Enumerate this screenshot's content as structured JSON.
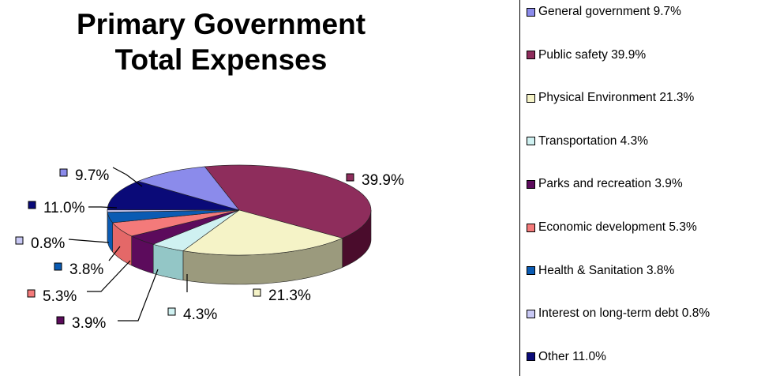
{
  "chart_data": {
    "type": "pie",
    "title": "Primary Government Total Expenses",
    "title_lines": [
      "Primary Government",
      "Total Expenses"
    ],
    "legend_position": "right",
    "slices": [
      {
        "name": "General government",
        "value": 9.7,
        "label": "9.7%",
        "legend": "General government 9.7%",
        "color": "#8B8BEB",
        "side": "#5C5CA8"
      },
      {
        "name": "Public safety",
        "value": 39.9,
        "label": "39.9%",
        "legend": "Public safety 39.9%",
        "color": "#8E2D5C",
        "side": "#4A0C2C"
      },
      {
        "name": "Physical Environment",
        "value": 21.3,
        "label": "21.3%",
        "legend": "Physical Environment 21.3%",
        "color": "#F5F3C7",
        "side": "#9B9A7D"
      },
      {
        "name": "Transportation",
        "value": 4.3,
        "label": "4.3%",
        "legend": "Transportation 4.3%",
        "color": "#CFF1F1",
        "side": "#93C6C6"
      },
      {
        "name": "Parks and recreation",
        "value": 3.9,
        "label": "3.9%",
        "legend": "Parks and recreation 3.9%",
        "color": "#5C0B5C",
        "side": "#5C0B5C"
      },
      {
        "name": "Economic development",
        "value": 5.3,
        "label": "5.3%",
        "legend": "Economic development 5.3%",
        "color": "#F47A7A",
        "side": "#E46868"
      },
      {
        "name": "Health & Sanitation",
        "value": 3.8,
        "label": "3.8%",
        "legend": "Health & Sanitation 3.8%",
        "color": "#0A5BB3",
        "side": "#0A5BB3"
      },
      {
        "name": "Interest on long-term debt",
        "value": 0.8,
        "label": "0.8%",
        "legend": "Interest on long-term debt 0.8%",
        "color": "#C9C9F5",
        "side": "#A5A5D8"
      },
      {
        "name": "Other",
        "value": 11.0,
        "label": "11.0%",
        "legend": "Other 11.0%",
        "color": "#0A0A78",
        "side": "#05054A"
      }
    ]
  }
}
